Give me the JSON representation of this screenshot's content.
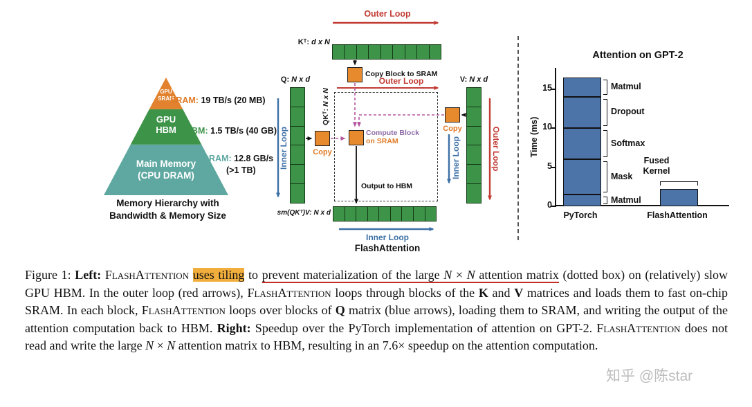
{
  "left": {
    "pyramid": {
      "tier1": [
        "GPU",
        "SRAM"
      ],
      "tier2": [
        "GPU",
        "HBM"
      ],
      "tier3": [
        "Main Memory",
        "(CPU DRAM)"
      ]
    },
    "specs": [
      {
        "name": "SRAM:",
        "value": " 19 TB/s (20 MB)"
      },
      {
        "name": "HBM:",
        "value": " 1.5 TB/s (40 GB)"
      },
      {
        "name": "DRAM:",
        "value": " 12.8 GB/s",
        "value2": "(>1 TB)"
      }
    ],
    "caption": [
      "Memory Hierarchy with",
      "Bandwidth & Memory Size"
    ],
    "colors": {
      "sram": "#E2822E",
      "hbm": "#3D9348",
      "dram": "#5FA8A1"
    }
  },
  "diagram": {
    "loops": {
      "outer_top": "Outer Loop",
      "outer_mid": "Outer Loop",
      "outer_right": "Outer Loop",
      "inner_left": "Inner Loop",
      "inner_right": "Inner Loop",
      "inner_bottom": "Inner Loop"
    },
    "matrices": {
      "kt": {
        "name": "Kᵀ:",
        "dims": "d x N"
      },
      "q": {
        "name": "Q:",
        "dims": "N x d"
      },
      "v": {
        "name": "V:",
        "dims": "N x d"
      },
      "qkt": {
        "name": "QKᵀ:",
        "dims": "N x N"
      },
      "out": {
        "name": "sm(QKᵀ)V:",
        "dims": "N x d"
      }
    },
    "copy_block_to_sram": "Copy Block to SRAM",
    "copy_left": "Copy",
    "copy_right": "Copy",
    "compute_line1": "Compute Block",
    "compute_line2": "on SRAM",
    "output_to_hbm": "Output to HBM",
    "title": "FlashAttention",
    "colors": {
      "outer_loop_red": "#C23B33",
      "inner_loop_blue": "#3C6FA5",
      "copy_orange": "#E78A2E",
      "matrix_green": "#3D9348",
      "compute_purple": "#8C6BA6",
      "dashed_magenta": "#B5559E"
    }
  },
  "chart_data": {
    "type": "bar",
    "title": "Attention on GPT-2",
    "ylabel": "Time (ms)",
    "ylim": [
      0,
      17.7
    ],
    "yticks": [
      0,
      5,
      10,
      15
    ],
    "grid": false,
    "categories": [
      "PyTorch",
      "FlashAttention"
    ],
    "pytorch_segments": [
      {
        "label": "Matmul",
        "value": 1.5
      },
      {
        "label": "Mask",
        "value": 4.5
      },
      {
        "label": "Softmax",
        "value": 4.0
      },
      {
        "label": "Dropout",
        "value": 4.0
      },
      {
        "label": "Matmul",
        "value": 2.5
      }
    ],
    "pytorch_total": 16.5,
    "flashattention_bar": {
      "label": "Fused Kernel",
      "value": 2.2
    },
    "bar_color": "#4C74A8"
  },
  "caption": {
    "segments": [
      {
        "t": "Figure 1: ",
        "s": ""
      },
      {
        "t": "Left: ",
        "s": "b"
      },
      {
        "t": "FlashAttention",
        "s": "sc"
      },
      {
        "t": " ",
        "s": ""
      },
      {
        "t": "uses tiling",
        "s": "hl"
      },
      {
        "t": " to ",
        "s": ""
      },
      {
        "t": "prevent materialization of the large ",
        "s": "ul"
      },
      {
        "t": "N",
        "s": "ul i"
      },
      {
        "t": " × ",
        "s": "ul"
      },
      {
        "t": "N",
        "s": "ul i"
      },
      {
        "t": " attention matrix",
        "s": "ul"
      },
      {
        "t": " (dotted box) on (relatively) slow GPU HBM. In the outer loop (red arrows), ",
        "s": ""
      },
      {
        "t": "FlashAttention",
        "s": "sc"
      },
      {
        "t": " loops through blocks of the ",
        "s": ""
      },
      {
        "t": "K",
        "s": "b"
      },
      {
        "t": " and ",
        "s": ""
      },
      {
        "t": "V",
        "s": "b"
      },
      {
        "t": " matrices and loads them to fast on-chip SRAM. In each block, ",
        "s": ""
      },
      {
        "t": "FlashAttention",
        "s": "sc"
      },
      {
        "t": " loops over blocks of ",
        "s": ""
      },
      {
        "t": "Q",
        "s": "b"
      },
      {
        "t": " matrix (blue arrows), loading them to SRAM, and writing the output of the attention computation back to HBM. ",
        "s": ""
      },
      {
        "t": "Right:",
        "s": "b"
      },
      {
        "t": " Speedup over the PyTorch implementation of attention on GPT-2. ",
        "s": ""
      },
      {
        "t": "FlashAttention",
        "s": "sc"
      },
      {
        "t": " does not read and write the large ",
        "s": ""
      },
      {
        "t": "N",
        "s": "i"
      },
      {
        "t": " × ",
        "s": ""
      },
      {
        "t": "N",
        "s": "i"
      },
      {
        "t": " attention matrix to HBM, resulting in an 7.6× speedup on the attention computation.",
        "s": ""
      }
    ]
  },
  "watermark": "知乎 @陈star",
  "colors": {
    "highlight": "#F2AE3C",
    "underline_red": "#C03026"
  }
}
